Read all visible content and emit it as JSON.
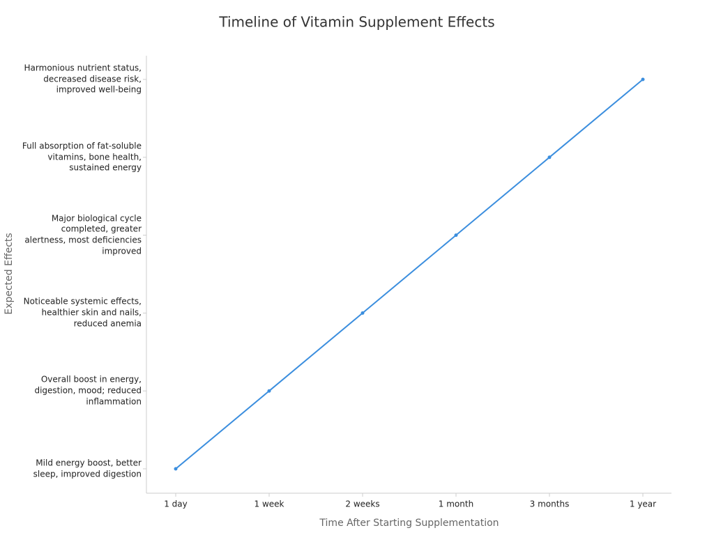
{
  "chart_data": {
    "type": "line",
    "title": "Timeline of Vitamin Supplement Effects",
    "x_label": "Time After Starting Supplementation",
    "y_label": "Expected Effects",
    "categories": [
      "1 day",
      "1 week",
      "2 weeks",
      "1 month",
      "3 months",
      "1 year"
    ],
    "y_categories": [
      "Mild energy boost, better sleep, improved digestion",
      "Overall boost in energy, digestion, mood; reduced inflammation",
      "Noticeable systemic effects, healthier skin and nails, reduced anemia",
      "Major biological cycle completed, greater alertness, most deficiencies improved",
      "Full absorption of fat-soluble vitamins, bone health, sustained energy",
      "Harmonious nutrient status, decreased disease risk, improved well-being"
    ],
    "series": [
      {
        "color": "#3b8ede",
        "values": [
          "Mild energy boost, better sleep, improved digestion",
          "Overall boost in energy, digestion, mood; reduced inflammation",
          "Noticeable systemic effects, healthier skin and nails, reduced anemia",
          "Major biological cycle completed, greater alertness, most deficiencies improved",
          "Full absorption of fat-soluble vitamins, bone health, sustained energy",
          "Harmonious nutrient status, decreased disease risk, improved well-being"
        ]
      }
    ]
  }
}
